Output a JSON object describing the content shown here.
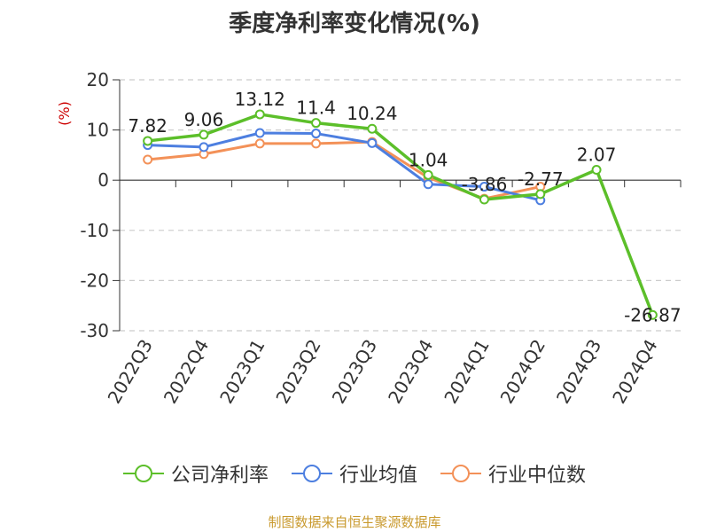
{
  "title": "季度净利率变化情况(%)",
  "footer": "制图数据来自恒生聚源数据库",
  "chart_data": {
    "type": "line",
    "title": "季度净利率变化情况(%)",
    "ylabel": "(%)",
    "xlabel": "",
    "ylim": [
      -30,
      20
    ],
    "yticks": [
      20,
      10,
      0,
      -10,
      -20,
      -30
    ],
    "grid": true,
    "legend_position": "bottom",
    "categories": [
      "2022Q3",
      "2022Q4",
      "2023Q1",
      "2023Q2",
      "2023Q3",
      "2023Q4",
      "2024Q1",
      "2024Q2",
      "2024Q3",
      "2024Q4"
    ],
    "series": [
      {
        "name": "公司净利率",
        "color": "#5cbf2a",
        "values": [
          7.82,
          9.06,
          13.12,
          11.4,
          10.24,
          1.04,
          -3.86,
          -2.77,
          2.07,
          -26.87
        ],
        "labels": [
          "7.82",
          "9.06",
          "13.12",
          "11.4",
          "10.24",
          "1.04",
          "-3.86",
          "-2.77",
          "2.07",
          "-26.87"
        ]
      },
      {
        "name": "行业均值",
        "color": "#4d7fe0",
        "values": [
          7.0,
          6.6,
          9.4,
          9.3,
          7.4,
          -0.8,
          -1.3,
          -4.0,
          null,
          null
        ]
      },
      {
        "name": "行业中位数",
        "color": "#f39158",
        "values": [
          4.1,
          5.2,
          7.3,
          7.3,
          7.6,
          0.5,
          -3.7,
          -1.3,
          null,
          null
        ]
      }
    ]
  }
}
